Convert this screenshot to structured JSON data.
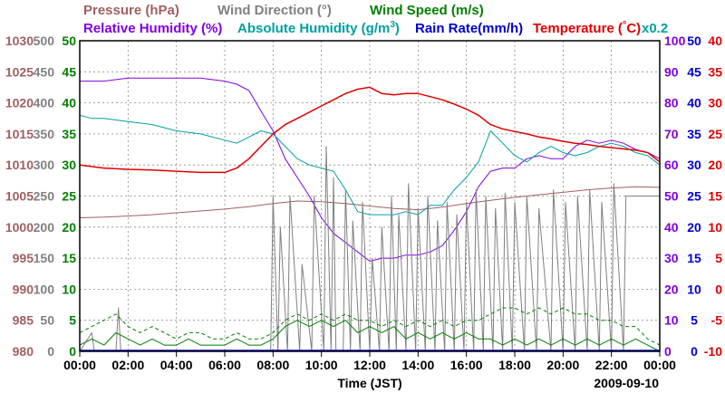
{
  "chart_data": {
    "type": "line",
    "date": "2009-09-10",
    "xlabel": "Time (JST)",
    "x_ticks": [
      "00:00",
      "02:00",
      "04:00",
      "06:00",
      "08:00",
      "10:00",
      "12:00",
      "14:00",
      "16:00",
      "18:00",
      "20:00",
      "22:00",
      "00:00"
    ],
    "x_range_hours": [
      0,
      24
    ],
    "legend_row1": [
      {
        "name": "Pressure (hPa)",
        "color": "#a06060"
      },
      {
        "name": "Wind Direction (°)",
        "color": "#808080"
      },
      {
        "name": "Wind Speed (m/s)",
        "color": "#008000"
      }
    ],
    "legend_row2": [
      {
        "name": "Relative Humidity (%)",
        "color": "#8000e0"
      },
      {
        "name": "Absolute Humidity (g/m",
        "sup": "3",
        "tail": ")",
        "color": "#00a0a0"
      },
      {
        "name": "Rain Rate(mm/h)",
        "color": "#0000d0"
      },
      {
        "name": "Temperature (",
        "deg": "°",
        "tail": "C)",
        "color": "#e00000"
      }
    ],
    "abs_humidity_factor": "x0.2",
    "axes": {
      "pressure": {
        "color": "#a06060",
        "min": 980,
        "max": 1030,
        "ticks": [
          "1030",
          "1025",
          "1020",
          "1015",
          "1010",
          "1005",
          "1000",
          "995",
          "990",
          "985",
          "980"
        ]
      },
      "wind_direction": {
        "color": "#808080",
        "min": 0,
        "max": 500,
        "ticks": [
          "500",
          "450",
          "400",
          "350",
          "300",
          "250",
          "200",
          "150",
          "100",
          "50",
          "0"
        ]
      },
      "wind_speed": {
        "color": "#008000",
        "min": 0,
        "max": 50,
        "ticks": [
          "50",
          "45",
          "40",
          "35",
          "30",
          "25",
          "20",
          "15",
          "10",
          "5",
          "0"
        ]
      },
      "humidity": {
        "color": "#8000e0",
        "min": 0,
        "max": 100,
        "ticks": [
          "100",
          "90",
          "80",
          "70",
          "60",
          "50",
          "40",
          "30",
          "20",
          "10",
          "0"
        ]
      },
      "rain_rate": {
        "color": "#0000d0",
        "min": 0,
        "max": 50,
        "ticks": [
          "50",
          "45",
          "40",
          "35",
          "30",
          "25",
          "20",
          "15",
          "10",
          "5",
          "0"
        ]
      },
      "temperature": {
        "color": "#e00000",
        "min": -10,
        "max": 40,
        "ticks": [
          "40",
          "35",
          "30",
          "25",
          "20",
          "15",
          "10",
          "5",
          "0",
          "-5",
          "-10"
        ]
      }
    },
    "series": [
      {
        "name": "Pressure",
        "axis": "pressure",
        "color": "#a06060",
        "width": 1,
        "x": [
          0,
          1,
          2,
          3,
          4,
          5,
          6,
          7,
          8,
          9,
          10,
          11,
          12,
          13,
          14,
          15,
          16,
          17,
          18,
          19,
          20,
          21,
          22,
          23,
          24
        ],
        "y": [
          1001.5,
          1001.6,
          1001.8,
          1002,
          1002.3,
          1002.6,
          1002.9,
          1003.3,
          1003.8,
          1004.2,
          1004.1,
          1003.8,
          1003.4,
          1003,
          1002.8,
          1003.2,
          1003.8,
          1004.3,
          1004.8,
          1005.2,
          1005.6,
          1006,
          1006.3,
          1006.5,
          1006.4
        ]
      },
      {
        "name": "Relative Humidity",
        "axis": "humidity",
        "color": "#8000e0",
        "width": 1,
        "x": [
          0,
          1,
          2,
          3,
          4,
          5,
          6,
          6.5,
          7,
          7.3,
          7.6,
          8,
          8.5,
          9,
          9.5,
          10,
          10.5,
          11,
          11.5,
          12,
          12.5,
          13,
          13.5,
          14,
          14.5,
          15,
          15.5,
          16,
          16.5,
          17,
          17.5,
          18,
          18.5,
          19,
          19.5,
          20,
          20.5,
          21,
          21.5,
          22,
          22.5,
          23,
          23.5,
          24
        ],
        "y": [
          87,
          87,
          88,
          88,
          88,
          88,
          87,
          86,
          84,
          80,
          76,
          71,
          62,
          56,
          50,
          43,
          38,
          35,
          32,
          29,
          30,
          30,
          31,
          31,
          32,
          34,
          39,
          45,
          53,
          58,
          59,
          59,
          62,
          63,
          62,
          62,
          66,
          68,
          67,
          68,
          67,
          65,
          64,
          62
        ]
      },
      {
        "name": "Absolute Humidity",
        "axis": "humidity",
        "color": "#00a0a0",
        "width": 1,
        "x": [
          0,
          0.5,
          1,
          2,
          3,
          4,
          5,
          6,
          6.5,
          7,
          7.5,
          8,
          8.5,
          9,
          9.5,
          10,
          10.5,
          11,
          11.5,
          12,
          12.5,
          13,
          13.5,
          14,
          14.5,
          15,
          15.5,
          16,
          16.5,
          17,
          17.5,
          18,
          18.5,
          19,
          19.5,
          20,
          20.5,
          21,
          21.5,
          22,
          22.5,
          23,
          23.5,
          24
        ],
        "y": [
          76,
          75,
          75,
          74,
          73,
          71,
          70,
          68,
          67,
          69,
          71,
          70,
          66,
          62,
          60,
          59,
          58,
          52,
          45,
          44,
          44,
          44,
          45,
          44,
          47,
          47,
          52,
          56,
          61,
          71,
          67,
          63,
          61,
          64,
          66,
          64,
          63,
          64,
          66,
          67,
          66,
          64,
          63,
          60
        ]
      },
      {
        "name": "Temperature",
        "axis": "temperature",
        "color": "#e00000",
        "width": 1.5,
        "x": [
          0,
          1,
          2,
          3,
          4,
          5,
          6,
          6.5,
          7,
          7.5,
          8,
          8.5,
          9,
          9.5,
          10,
          10.5,
          11,
          11.5,
          12,
          12.5,
          13,
          13.5,
          14,
          14.5,
          15,
          15.5,
          16,
          16.5,
          17,
          17.5,
          18,
          18.5,
          19,
          19.5,
          20,
          20.5,
          21,
          21.5,
          22,
          22.5,
          23,
          23.5,
          24
        ],
        "y": [
          20,
          19.5,
          19.3,
          19.2,
          19,
          18.8,
          18.8,
          19.5,
          21,
          23,
          25,
          26.5,
          27.5,
          28.5,
          29.5,
          30.5,
          31.5,
          32.2,
          32.5,
          31.5,
          31.3,
          31.5,
          31.5,
          31,
          30.5,
          29.8,
          29,
          28,
          26.5,
          25.8,
          25.4,
          25,
          24.5,
          24.2,
          23.8,
          23.5,
          23.3,
          23,
          22.8,
          22.6,
          22.4,
          22,
          20.5
        ]
      },
      {
        "name": "Wind Direction",
        "axis": "wind_direction",
        "color": "#808080",
        "width": 1,
        "x": [
          0,
          0.5,
          0.6,
          1,
          1.5,
          1.6,
          1.7,
          2,
          4,
          7.9,
          8,
          8.2,
          8.3,
          8.6,
          8.7,
          9.1,
          9.2,
          9.6,
          9.7,
          10.1,
          10.2,
          10.4,
          10.5,
          10.6,
          10.9,
          11,
          11.2,
          11.3,
          11.6,
          11.7,
          12,
          12.1,
          12.4,
          12.5,
          12.8,
          12.9,
          13.1,
          13.2,
          13.5,
          13.6,
          13.9,
          14,
          14.3,
          14.4,
          14.7,
          14.8,
          15.1,
          15.2,
          15.5,
          15.6,
          15.9,
          16,
          16.3,
          16.4,
          16.7,
          16.8,
          17.1,
          17.2,
          17.5,
          17.6,
          17.9,
          18,
          18.4,
          18.5,
          18.9,
          19,
          19.5,
          19.6,
          20,
          20.1,
          20.5,
          20.6,
          21,
          21.1,
          21.5,
          21.6,
          22,
          22.1,
          22.5,
          22.6,
          23,
          24
        ],
        "y": [
          0,
          30,
          0,
          0,
          0,
          70,
          0,
          0,
          0,
          0,
          250,
          0,
          200,
          0,
          250,
          0,
          140,
          0,
          250,
          0,
          330,
          0,
          280,
          0,
          0,
          260,
          0,
          210,
          0,
          240,
          0,
          150,
          0,
          200,
          0,
          250,
          0,
          220,
          0,
          270,
          0,
          230,
          0,
          250,
          0,
          210,
          0,
          240,
          0,
          220,
          0,
          240,
          0,
          260,
          0,
          250,
          0,
          230,
          0,
          255,
          0,
          240,
          0,
          250,
          0,
          230,
          0,
          260,
          0,
          240,
          0,
          250,
          0,
          260,
          0,
          240,
          0,
          270,
          0,
          250,
          250,
          250
        ]
      },
      {
        "name": "Wind Speed",
        "axis": "wind_speed",
        "color": "#008000",
        "width": 1,
        "x": [
          0,
          0.5,
          1,
          1.5,
          2,
          2.5,
          3,
          3.5,
          4,
          4.5,
          5,
          5.5,
          6,
          6.5,
          7,
          7.5,
          8,
          8.5,
          9,
          9.5,
          10,
          10.5,
          11,
          11.5,
          12,
          12.5,
          13,
          13.5,
          14,
          14.5,
          15,
          15.5,
          16,
          16.5,
          17,
          17.5,
          18,
          18.5,
          19,
          19.5,
          20,
          20.5,
          21,
          21.5,
          22,
          22.5,
          23,
          23.5,
          24
        ],
        "y": [
          1,
          2,
          1,
          3,
          2,
          1,
          2,
          1,
          1,
          2,
          1,
          1,
          1,
          2,
          1,
          1,
          2,
          4,
          5,
          4,
          5,
          4,
          5,
          3,
          4,
          3,
          4,
          2,
          3,
          2,
          3,
          2,
          3,
          2,
          2,
          1,
          2,
          1,
          2,
          1,
          2,
          1,
          2,
          1,
          2,
          1,
          2,
          1,
          0
        ]
      },
      {
        "name": "Wind Speed Gust",
        "axis": "wind_speed",
        "color": "#008000",
        "width": 1,
        "dash": true,
        "x": [
          0,
          0.5,
          1,
          1.5,
          2,
          2.5,
          3,
          3.5,
          4,
          4.5,
          5,
          5.5,
          6,
          6.5,
          7,
          7.5,
          8,
          8.5,
          9,
          9.5,
          10,
          10.5,
          11,
          11.5,
          12,
          12.5,
          13,
          13.5,
          14,
          14.5,
          15,
          15.5,
          16,
          16.5,
          17,
          17.5,
          18,
          18.5,
          19,
          19.5,
          20,
          20.5,
          21,
          21.5,
          22,
          22.5,
          23,
          23.5,
          24
        ],
        "y": [
          3,
          4,
          5,
          6,
          4,
          3,
          4,
          3,
          2,
          3,
          3,
          2,
          2,
          3,
          2,
          2,
          3,
          5,
          6,
          5,
          6,
          5,
          6,
          5,
          5,
          4,
          5,
          4,
          5,
          4,
          5,
          4,
          5,
          5,
          6,
          7,
          7,
          6,
          7,
          6,
          7,
          6,
          6,
          5,
          5,
          4,
          4,
          2,
          1
        ]
      }
    ]
  }
}
